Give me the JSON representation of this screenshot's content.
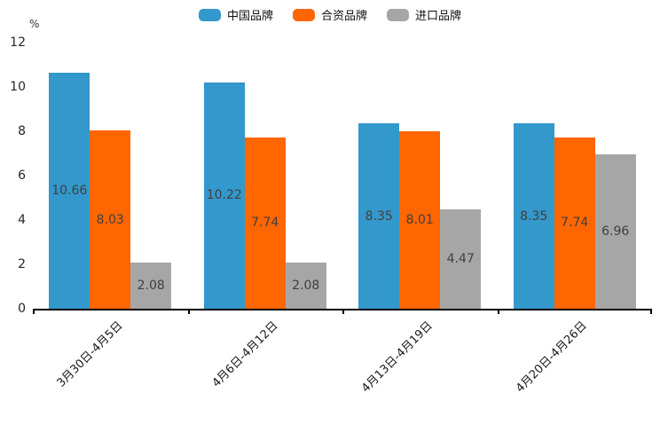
{
  "chart_data": {
    "type": "bar",
    "title": "",
    "xlabel": "",
    "ylabel": "%",
    "ylim": [
      0,
      12
    ],
    "yticks": [
      0,
      2,
      4,
      6,
      8,
      10,
      12
    ],
    "grid": false,
    "legend_position": "top",
    "data_labels_position": "inside-center",
    "categories": [
      "3月30日-4月5日",
      "4月6日-4月12日",
      "4月13日-4月19日",
      "4月20日-4月26日"
    ],
    "series": [
      {
        "name": "中国品牌",
        "color": "#3398cb",
        "values": [
          10.66,
          10.22,
          8.35,
          8.35
        ]
      },
      {
        "name": "合资品牌",
        "color": "#ff6600",
        "values": [
          8.03,
          7.74,
          8.01,
          7.74
        ]
      },
      {
        "name": "进口品牌",
        "color": "#a6a6a6",
        "values": [
          2.08,
          2.08,
          4.47,
          6.96
        ]
      }
    ],
    "colors": {
      "axis": "#000000",
      "bar_value_label": "#404040",
      "tick_label": "#262626"
    }
  }
}
